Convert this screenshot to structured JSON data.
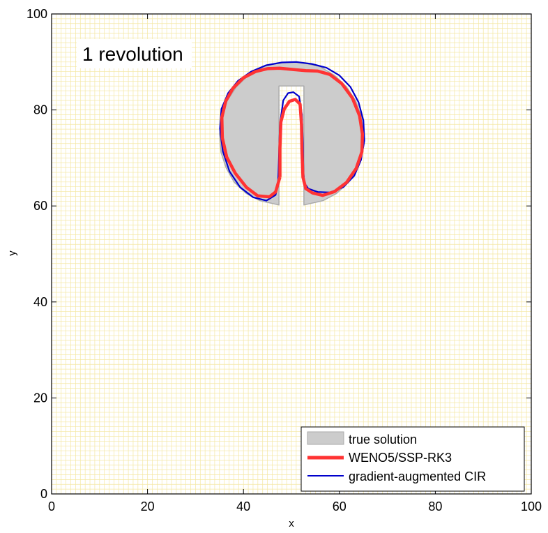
{
  "chart_data": {
    "type": "line",
    "title": "",
    "xlabel": "x",
    "ylabel": "y",
    "xlim": [
      0,
      100
    ],
    "ylim": [
      0,
      100
    ],
    "grid": true,
    "grid_minor_step": 1,
    "legend_position": "bottom-right",
    "x_ticks": [
      "0",
      "20",
      "40",
      "60",
      "80",
      "100"
    ],
    "y_ticks": [
      "0",
      "20",
      "40",
      "60",
      "80",
      "100"
    ],
    "annotation": "1 revolution",
    "colors": {
      "grid": "#f4e7a2",
      "true_fill": "#cccccc",
      "true_edge": "#aaaaaa",
      "weno": "#ff3333",
      "cir": "#0000cc"
    },
    "series": [
      {
        "name": "true solution",
        "style": "filled",
        "x": [
          47.4,
          47.4,
          52.6,
          52.6,
          56.6,
          59.4,
          61.9,
          63.6,
          64.7,
          65.0,
          64.6,
          63.4,
          61.5,
          59.0,
          56.0,
          52.6,
          50.0,
          47.4,
          44.0,
          41.0,
          38.5,
          36.6,
          35.4,
          35.0,
          35.3,
          36.4,
          38.1,
          40.6,
          43.4,
          47.4
        ],
        "y": [
          60.2,
          85.0,
          85.0,
          60.2,
          61.1,
          62.6,
          64.9,
          67.9,
          71.2,
          75.0,
          78.5,
          81.9,
          84.8,
          87.2,
          89.0,
          89.8,
          90.0,
          89.8,
          89.0,
          87.2,
          84.8,
          81.9,
          78.5,
          75.0,
          71.2,
          67.9,
          64.9,
          62.6,
          61.1,
          60.2
        ]
      },
      {
        "name": "WENO5/SSP-RK3",
        "style": "thick-line",
        "x": [
          47.6,
          47.6,
          47.8,
          48.5,
          49.6,
          50.8,
          51.8,
          52.1,
          52.2,
          52.4,
          53.0,
          54.4,
          56.5,
          59.0,
          61.5,
          63.5,
          64.7,
          64.8,
          64.2,
          62.7,
          60.5,
          58.0,
          55.5,
          53.0,
          50.5,
          47.5,
          45.0,
          42.5,
          40.0,
          37.8,
          36.3,
          35.5,
          35.6,
          36.5,
          38.3,
          40.6,
          43.0,
          45.4,
          46.7,
          47.6
        ],
        "y": [
          66.0,
          72.0,
          77.5,
          80.2,
          81.8,
          82.2,
          81.2,
          77.0,
          71.5,
          66.0,
          63.6,
          62.7,
          62.2,
          63.0,
          64.9,
          67.8,
          71.3,
          75.0,
          78.8,
          82.5,
          85.5,
          87.4,
          88.1,
          88.2,
          88.4,
          88.7,
          88.6,
          88.0,
          86.7,
          84.5,
          81.8,
          78.4,
          74.2,
          70.2,
          66.8,
          63.9,
          62.1,
          61.9,
          62.9,
          66.0
        ]
      },
      {
        "name": "gradient-augmented CIR",
        "style": "thin-line",
        "x": [
          47.3,
          47.6,
          48.3,
          49.3,
          50.4,
          51.6,
          52.2,
          52.4,
          52.5,
          52.7,
          53.5,
          55.5,
          58.0,
          60.8,
          63.1,
          64.5,
          65.2,
          65.0,
          64.0,
          62.3,
          60.0,
          57.3,
          54.2,
          51.0,
          48.0,
          44.7,
          41.6,
          38.9,
          36.8,
          35.4,
          35.1,
          35.7,
          37.1,
          39.3,
          42.0,
          44.8,
          46.7,
          47.2,
          47.3
        ],
        "y": [
          67.0,
          77.0,
          82.0,
          83.5,
          83.7,
          82.8,
          79.0,
          73.0,
          67.0,
          64.8,
          63.6,
          62.9,
          62.8,
          63.9,
          66.3,
          69.6,
          73.6,
          77.8,
          81.6,
          84.8,
          87.2,
          88.8,
          89.6,
          90.0,
          89.9,
          89.3,
          88.0,
          86.1,
          83.5,
          80.2,
          76.1,
          71.4,
          67.2,
          63.9,
          61.8,
          61.1,
          62.3,
          64.5,
          67.0
        ]
      }
    ]
  }
}
